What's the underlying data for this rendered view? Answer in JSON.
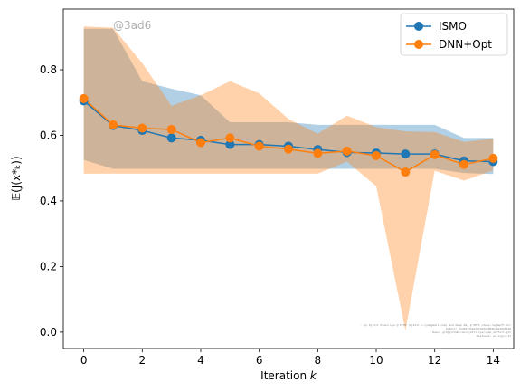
{
  "chart_data": {
    "type": "line",
    "title": "",
    "xlabel_main": "Iteration ",
    "xlabel_var": "k",
    "ylabel": "𝔼(J(x*ₖ))",
    "xlim": [
      -0.7,
      14.7
    ],
    "ylim": [
      -0.05,
      0.985
    ],
    "xticks": [
      0,
      2,
      4,
      6,
      8,
      10,
      12,
      14
    ],
    "yticks": [
      0.0,
      0.2,
      0.4,
      0.6,
      0.8
    ],
    "ytick_labels": [
      "0.0",
      "0.2",
      "0.4",
      "0.6",
      "0.8"
    ],
    "legend_position": "top-right",
    "grid": false,
    "watermark": "@3ad6",
    "footnote": [
      "- by Kjetil Olsen Lye @ ETHZ (kjetil.o.lye@gmail.com) and Deep Ray @ EPFL <deep.ray@epfl.ch>",
      "Commit: 3ad6d7319e31fa92e2982bc9e49d1120",
      "Repo: git@github.com:kjetil-lye/ismo_airfoil.git",
      "Hostname: eu-login-31"
    ],
    "x": [
      0,
      1,
      2,
      3,
      4,
      5,
      6,
      7,
      8,
      9,
      10,
      11,
      12,
      13,
      14
    ],
    "series": [
      {
        "name": "ISMO",
        "color": "#1f77b4",
        "values": [
          0.705,
          0.63,
          0.615,
          0.592,
          0.585,
          0.572,
          0.572,
          0.567,
          0.557,
          0.548,
          0.546,
          0.543,
          0.543,
          0.522,
          0.52
        ],
        "band_upper": [
          0.925,
          0.925,
          0.765,
          0.742,
          0.722,
          0.64,
          0.64,
          0.64,
          0.632,
          0.632,
          0.632,
          0.632,
          0.632,
          0.592,
          0.592
        ],
        "band_lower": [
          0.525,
          0.498,
          0.498,
          0.498,
          0.498,
          0.498,
          0.498,
          0.498,
          0.498,
          0.498,
          0.498,
          0.498,
          0.498,
          0.485,
          0.482
        ]
      },
      {
        "name": "DNN+Opt",
        "color": "#ff7f0e",
        "values": [
          0.712,
          0.632,
          0.622,
          0.618,
          0.578,
          0.592,
          0.567,
          0.558,
          0.545,
          0.552,
          0.538,
          0.488,
          0.541,
          0.511,
          0.53
        ],
        "band_upper": [
          0.932,
          0.928,
          0.82,
          0.69,
          0.722,
          0.765,
          0.728,
          0.65,
          0.605,
          0.66,
          0.625,
          0.612,
          0.61,
          0.58,
          0.59
        ],
        "band_lower": [
          0.483,
          0.483,
          0.483,
          0.483,
          0.483,
          0.483,
          0.483,
          0.483,
          0.483,
          0.52,
          0.445,
          0.005,
          0.492,
          0.462,
          0.493
        ]
      }
    ]
  }
}
